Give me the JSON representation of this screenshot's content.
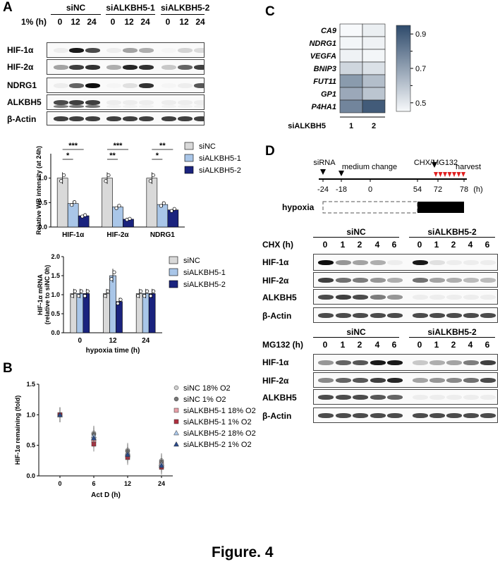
{
  "figure_caption": "Figure. 4",
  "panelA": {
    "letter": "A",
    "groups": [
      "siNC",
      "siALKBH5-1",
      "siALKBH5-2"
    ],
    "time_label": "1% (h)",
    "times": [
      "0",
      "12",
      "24",
      "0",
      "12",
      "24",
      "0",
      "12",
      "24"
    ],
    "rows": [
      "HIF-1α",
      "HIF-2α",
      "NDRG1",
      "ALKBH5",
      "β-Actin"
    ]
  },
  "panelC": {
    "letter": "C",
    "genes": [
      "CA9",
      "NDRG1",
      "VEGFA",
      "BNIP3",
      "FUT11",
      "GP1",
      "P4HA1"
    ],
    "xlabel": "siALKBH5",
    "columns": [
      "1",
      "2"
    ],
    "scale_ticks": [
      "0.9",
      "0.7",
      "0.5"
    ]
  },
  "panelD": {
    "letter": "D",
    "timeline_labels": {
      "sirna": "siRNA",
      "medium": "medium change",
      "treat": "CHX/MG132",
      "harvest": "harvest",
      "unit": "(h)"
    },
    "timeline_ticks": [
      "-24",
      "-18",
      "0",
      "54",
      "72",
      "78"
    ],
    "hypoxia_label": "hypoxia",
    "groups": [
      "siNC",
      "siALKBH5-2"
    ],
    "chx_label": "CHX (h)",
    "mg_label": "MG132 (h)",
    "times": [
      "0",
      "1",
      "2",
      "4",
      "6",
      "0",
      "1",
      "2",
      "4",
      "6"
    ],
    "rows": [
      "HIF-1α",
      "HIF-2α",
      "ALKBH5",
      "β-Actin"
    ]
  },
  "panelB": {
    "letter": "B"
  },
  "colors": {
    "siNC": "#d9d9d9",
    "si1": "#a9c6e8",
    "si2": "#1a237e",
    "heat_low": "#f7f9fb",
    "heat_high": "#2e4a6b",
    "red_arrow": "#e02020"
  },
  "chart_data": [
    {
      "type": "bar",
      "ylabel": "Relative WB intensity (at 24h)",
      "categories": [
        "HIF-1α",
        "HIF-2α",
        "NDRG1"
      ],
      "ylim": [
        0,
        1.5
      ],
      "yticks": [
        "0.0",
        "0.5",
        "1.0"
      ],
      "series": [
        {
          "name": "siNC",
          "values": [
            1.0,
            1.0,
            1.0
          ]
        },
        {
          "name": "siALKBH5-1",
          "values": [
            0.48,
            0.41,
            0.46
          ]
        },
        {
          "name": "siALKBH5-2",
          "values": [
            0.23,
            0.16,
            0.35
          ]
        }
      ],
      "significance": [
        "***",
        "*",
        "***",
        "**",
        "**",
        "*"
      ],
      "legend": "top-right"
    },
    {
      "type": "bar",
      "ylabel": "HIF-1α mRNA (relative to siNC 0h)",
      "xlabel": "hypoxia time (h)",
      "categories": [
        "0",
        "12",
        "24"
      ],
      "ylim": [
        0,
        2.0
      ],
      "yticks": [
        "0.0",
        "0.5",
        "1.0",
        "1.5",
        "2.0"
      ],
      "series": [
        {
          "name": "siNC",
          "values": [
            1.03,
            1.03,
            1.03
          ]
        },
        {
          "name": "siALKBH5-1",
          "values": [
            1.03,
            1.5,
            1.03
          ]
        },
        {
          "name": "siALKBH5-2",
          "values": [
            1.03,
            0.82,
            1.03
          ]
        }
      ],
      "legend": "top-right"
    },
    {
      "type": "scatter",
      "ylabel": "HIF-1α remaining (fold)",
      "xlabel": "Act D (h)",
      "x": [
        "0",
        "6",
        "12",
        "24"
      ],
      "ylim": [
        0,
        1.5
      ],
      "yticks": [
        "0.0",
        "0.5",
        "1.0",
        "1.5"
      ],
      "series": [
        {
          "name": "siNC 18% O2",
          "values": [
            1.0,
            0.7,
            0.42,
            0.25
          ]
        },
        {
          "name": "siNC 1% O2",
          "values": [
            1.0,
            0.68,
            0.4,
            0.23
          ]
        },
        {
          "name": "siALKBH5-1 18% O2",
          "values": [
            1.0,
            0.58,
            0.33,
            0.18
          ]
        },
        {
          "name": "siALKBH5-1 1% O2",
          "values": [
            1.0,
            0.52,
            0.3,
            0.14
          ]
        },
        {
          "name": "siALKBH5-2 18% O2",
          "values": [
            1.0,
            0.66,
            0.37,
            0.2
          ]
        },
        {
          "name": "siALKBH5-2 1% O2",
          "values": [
            1.0,
            0.62,
            0.35,
            0.17
          ]
        }
      ],
      "legend": "top-right"
    },
    {
      "type": "heatmap",
      "rows": [
        "CA9",
        "NDRG1",
        "VEGFA",
        "BNIP3",
        "FUT11",
        "GP1",
        "P4HA1"
      ],
      "columns": [
        "1",
        "2"
      ],
      "values": [
        [
          0.45,
          0.48
        ],
        [
          0.46,
          0.47
        ],
        [
          0.47,
          0.46
        ],
        [
          0.55,
          0.52
        ],
        [
          0.72,
          0.62
        ],
        [
          0.68,
          0.6
        ],
        [
          0.78,
          0.9
        ]
      ],
      "scale": [
        0.45,
        0.95
      ]
    }
  ]
}
